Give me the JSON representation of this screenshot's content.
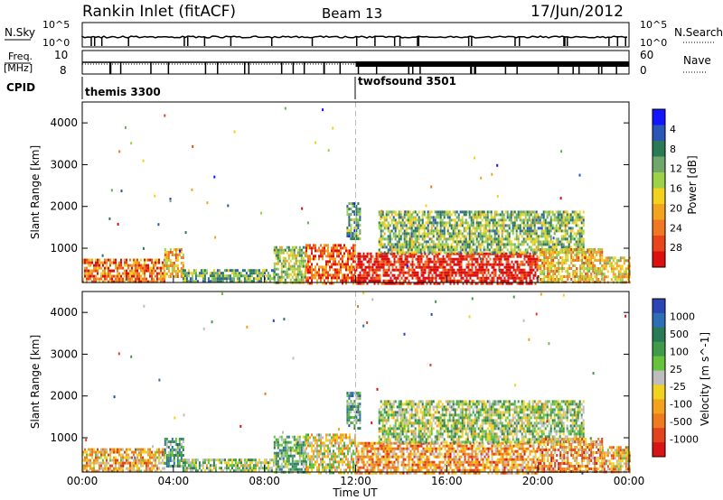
{
  "header": {
    "station": "Rankin Inlet (fitACF)",
    "beam": "Beam 13",
    "date": "17/Jun/2012"
  },
  "status_panels": {
    "nsky_label": "N.Sky",
    "nsearch_label": "N.Search",
    "freq_label_1": "Freq.",
    "freq_label_2": "[MHz]",
    "nave_label": "Nave",
    "cpid_label": "CPID",
    "noise_ticks": [
      "10^5",
      "10^0"
    ],
    "freq_ticks": [
      "10",
      "8"
    ],
    "nave_ticks": [
      "60",
      "0"
    ]
  },
  "cpid_segments": [
    {
      "label": "themis 3300",
      "start_hour": 0
    },
    {
      "label": "twofsound 3501",
      "start_hour": 12.0
    }
  ],
  "chart_data": [
    {
      "type": "heatmap",
      "title": "",
      "xlabel": "Time UT",
      "ylabel": "Slant Range [km]",
      "xlim": [
        0,
        24
      ],
      "ylim": [
        180,
        4500
      ],
      "xticks": [
        "00:00",
        "04:00",
        "08:00",
        "12:00",
        "16:00",
        "20:00",
        "00:00"
      ],
      "yticks": [
        "1000",
        "2000",
        "3000",
        "4000"
      ],
      "colorbar": {
        "label": "Power [dB]",
        "ticks": [
          "4",
          "8",
          "12",
          "16",
          "20",
          "24",
          "28"
        ],
        "colors": [
          "#1414ff",
          "#2a56b8",
          "#2a7a55",
          "#6fa86a",
          "#9bd24a",
          "#f2d21e",
          "#f2a41e",
          "#f07822",
          "#e8451c",
          "#dd1010"
        ]
      },
      "dashed_marker_hour": 12.0,
      "regions": [
        {
          "t0": 0.0,
          "t1": 3.6,
          "r0": 180,
          "r1": 750,
          "level": 0.75
        },
        {
          "t0": 3.6,
          "t1": 4.4,
          "r0": 300,
          "r1": 1000,
          "level": 0.6
        },
        {
          "t0": 4.4,
          "t1": 8.4,
          "r0": 180,
          "r1": 500,
          "level": 0.35
        },
        {
          "t0": 8.4,
          "t1": 9.8,
          "r0": 200,
          "r1": 1050,
          "level": 0.45
        },
        {
          "t0": 9.8,
          "t1": 12.0,
          "r0": 180,
          "r1": 1100,
          "level": 0.8
        },
        {
          "t0": 11.6,
          "t1": 12.2,
          "r0": 1200,
          "r1": 2100,
          "level": 0.3
        },
        {
          "t0": 12.0,
          "t1": 20.0,
          "r0": 180,
          "r1": 900,
          "level": 0.95
        },
        {
          "t0": 13.0,
          "t1": 22.0,
          "r0": 900,
          "r1": 1900,
          "level": 0.4
        },
        {
          "t0": 20.0,
          "t1": 22.8,
          "r0": 180,
          "r1": 1000,
          "level": 0.6
        },
        {
          "t0": 22.8,
          "t1": 24.0,
          "r0": 180,
          "r1": 800,
          "level": 0.55
        }
      ]
    },
    {
      "type": "heatmap",
      "title": "",
      "xlabel": "Time UT",
      "ylabel": "Slant Range [km]",
      "xlim": [
        0,
        24
      ],
      "ylim": [
        180,
        4500
      ],
      "xticks": [
        "00:00",
        "04:00",
        "08:00",
        "12:00",
        "16:00",
        "20:00",
        "00:00"
      ],
      "yticks": [
        "1000",
        "2000",
        "3000",
        "4000"
      ],
      "colorbar": {
        "label": "Velocity [m s^-1]",
        "ticks": [
          "1000",
          "500",
          "100",
          "25",
          "-25",
          "-100",
          "-500",
          "-1000"
        ],
        "colors": [
          "#2b46b4",
          "#2d6fb5",
          "#2a7a55",
          "#3f9a4a",
          "#67c23c",
          "#bdbdbd",
          "#f2d21e",
          "#f3a21d",
          "#ee7b1f",
          "#e2421c",
          "#d71515"
        ]
      },
      "dashed_marker_hour": 12.0,
      "regions": [
        {
          "t0": 0.0,
          "t1": 3.6,
          "r0": 180,
          "r1": 750,
          "level": 0.65
        },
        {
          "t0": 3.6,
          "t1": 4.4,
          "r0": 300,
          "r1": 1000,
          "level": 0.3
        },
        {
          "t0": 4.4,
          "t1": 8.4,
          "r0": 180,
          "r1": 500,
          "level": 0.45
        },
        {
          "t0": 8.4,
          "t1": 9.8,
          "r0": 200,
          "r1": 1050,
          "level": 0.35
        },
        {
          "t0": 9.8,
          "t1": 12.0,
          "r0": 180,
          "r1": 1100,
          "level": 0.55
        },
        {
          "t0": 11.6,
          "t1": 12.2,
          "r0": 1200,
          "r1": 2100,
          "level": 0.3
        },
        {
          "t0": 12.0,
          "t1": 20.0,
          "r0": 180,
          "r1": 900,
          "level": 0.7
        },
        {
          "t0": 13.0,
          "t1": 22.0,
          "r0": 900,
          "r1": 1900,
          "level": 0.45
        },
        {
          "t0": 20.0,
          "t1": 22.8,
          "r0": 180,
          "r1": 1000,
          "level": 0.7
        },
        {
          "t0": 22.8,
          "t1": 24.0,
          "r0": 180,
          "r1": 800,
          "level": 0.65
        }
      ]
    }
  ]
}
